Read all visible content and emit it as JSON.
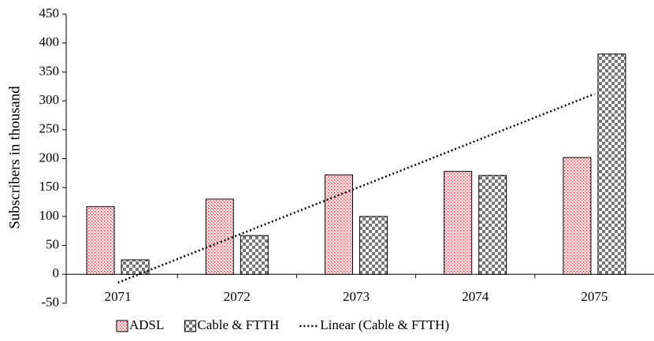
{
  "chart_data": {
    "type": "bar",
    "ylabel": "Subscribers in thousand",
    "categories": [
      "2071",
      "2072",
      "2073",
      "2074",
      "2075"
    ],
    "series": [
      {
        "name": "ADSL",
        "color": "#e8a0a8",
        "values": [
          117,
          130,
          172,
          178,
          202
        ]
      },
      {
        "name": "Cable & FTTH",
        "color": "#888888",
        "values": [
          25,
          67,
          100,
          171,
          381
        ]
      }
    ],
    "trendline": {
      "name": "Linear (Cable & FTTH)",
      "fit": "linear",
      "series": "Cable & FTTH"
    },
    "ylim": [
      -50,
      450
    ],
    "yticks": [
      -50,
      0,
      50,
      100,
      150,
      200,
      250,
      300,
      350,
      400,
      450
    ],
    "grid": false
  }
}
